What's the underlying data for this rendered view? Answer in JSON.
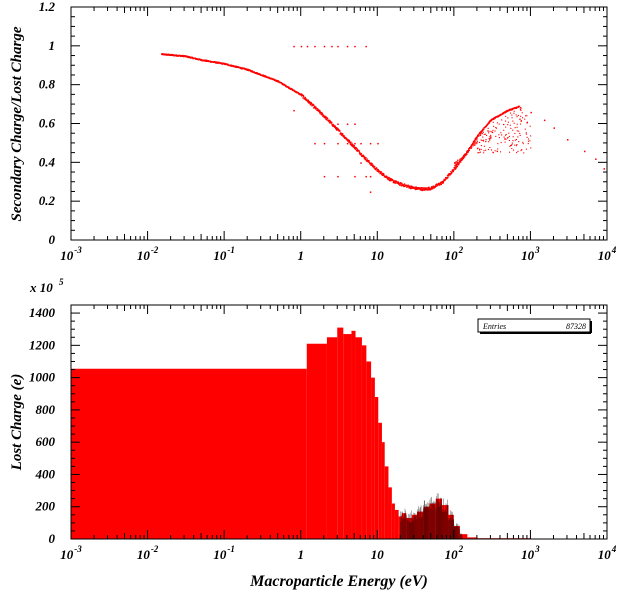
{
  "chart_data": [
    {
      "type": "scatter",
      "xscale": "log",
      "xlim": [
        0.001,
        10000
      ],
      "ylim": [
        0,
        1.2
      ],
      "ylabel": "Secondary Charge/Lost Charge",
      "xlabel": "",
      "color": "#ff0000",
      "x_tick_labels": [
        {
          "base": "10",
          "exp": "-3"
        },
        {
          "base": "10",
          "exp": "-2"
        },
        {
          "base": "10",
          "exp": "-1"
        },
        {
          "base": "1",
          "exp": ""
        },
        {
          "base": "10",
          "exp": ""
        },
        {
          "base": "10",
          "exp": "2"
        },
        {
          "base": "10",
          "exp": "3"
        },
        {
          "base": "10",
          "exp": "4"
        }
      ],
      "y_tick_labels": [
        "0",
        "0.2",
        "0.4",
        "0.6",
        "0.8",
        "1",
        "1.2"
      ],
      "y_tick_values": [
        0,
        0.2,
        0.4,
        0.6,
        0.8,
        1.0,
        1.2
      ],
      "main_curve": {
        "x": [
          0.015,
          0.03,
          0.05,
          0.1,
          0.2,
          0.5,
          1,
          2,
          3,
          5,
          7,
          10,
          15,
          20,
          30,
          40,
          50,
          70,
          100,
          150,
          200,
          300,
          500,
          700
        ],
        "y": [
          0.96,
          0.95,
          0.93,
          0.91,
          0.88,
          0.82,
          0.75,
          0.64,
          0.57,
          0.48,
          0.42,
          0.36,
          0.31,
          0.29,
          0.27,
          0.265,
          0.27,
          0.3,
          0.37,
          0.46,
          0.54,
          0.62,
          0.67,
          0.69
        ]
      },
      "tail_points": {
        "x": [
          1000,
          1500,
          2000,
          3000,
          5000,
          7000,
          9000
        ],
        "y": [
          0.66,
          0.62,
          0.58,
          0.52,
          0.46,
          0.42,
          0.37
        ]
      },
      "row_points": {
        "x": [
          0.8,
          1,
          1.2,
          1.5,
          2,
          2.5,
          3,
          4,
          5,
          7,
          0.8,
          1.5,
          2,
          3,
          4,
          5,
          6,
          8,
          10,
          3,
          4,
          5,
          6,
          8,
          2,
          3,
          5,
          7,
          8
        ],
        "y": [
          1.0,
          1.0,
          1.0,
          1.0,
          1.0,
          1.0,
          1.0,
          1.0,
          1.0,
          1.0,
          0.67,
          0.5,
          0.5,
          0.5,
          0.5,
          0.5,
          0.5,
          0.5,
          0.5,
          0.6,
          0.6,
          0.6,
          0.4,
          0.33,
          0.33,
          0.33,
          0.33,
          0.33,
          0.25
        ]
      }
    },
    {
      "type": "bar",
      "xscale": "log",
      "xlim": [
        0.001,
        10000
      ],
      "ylim": [
        0,
        1450
      ],
      "ylabel": "Lost Charge (e)",
      "xlabel": "Macroparticle Energy (eV)",
      "y_multiplier": {
        "base": "x 10",
        "exp": "5"
      },
      "color": "#ff0000",
      "x_tick_labels": [
        {
          "base": "10",
          "exp": "-3"
        },
        {
          "base": "10",
          "exp": "-2"
        },
        {
          "base": "10",
          "exp": "-1"
        },
        {
          "base": "1",
          "exp": ""
        },
        {
          "base": "10",
          "exp": ""
        },
        {
          "base": "10",
          "exp": "2"
        },
        {
          "base": "10",
          "exp": "3"
        },
        {
          "base": "10",
          "exp": "4"
        }
      ],
      "y_tick_labels": [
        "0",
        "200",
        "400",
        "600",
        "800",
        "1000",
        "1200",
        "1400"
      ],
      "y_tick_values": [
        0,
        200,
        400,
        600,
        800,
        1000,
        1200,
        1400
      ],
      "stats": {
        "label": "Entries",
        "value": "87328"
      },
      "bins": {
        "edges": [
          0.001,
          1.2,
          2.2,
          3.0,
          3.6,
          4.6,
          5.2,
          6.3,
          7.2,
          8.3,
          9.3,
          10.3,
          11.5,
          12.5,
          14,
          15.5,
          17,
          19,
          21,
          24,
          28,
          33,
          40,
          48,
          58,
          70,
          85,
          100,
          120,
          150,
          200,
          1000
        ],
        "values": [
          1055,
          1210,
          1250,
          1310,
          1270,
          1290,
          1250,
          1200,
          1100,
          1000,
          880,
          720,
          600,
          450,
          320,
          220,
          180,
          140,
          160,
          130,
          150,
          170,
          200,
          220,
          250,
          210,
          150,
          80,
          30,
          10,
          5
        ]
      }
    }
  ]
}
